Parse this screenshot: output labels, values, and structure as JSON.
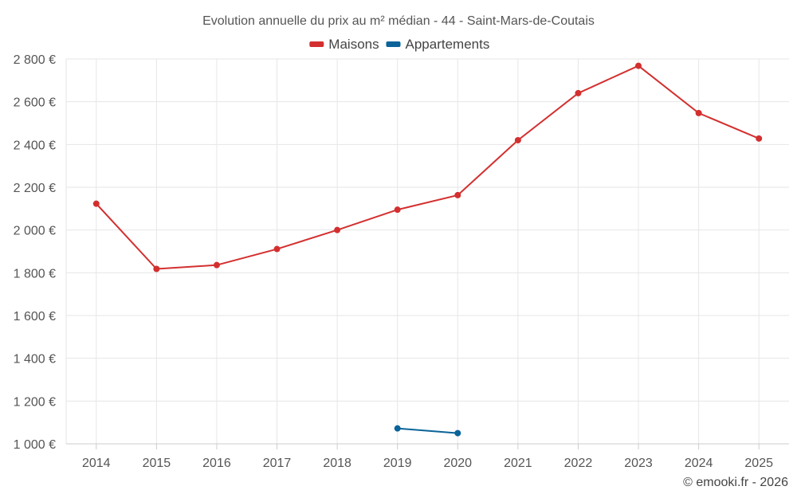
{
  "chart_data": {
    "type": "line",
    "title": "Evolution annuelle du prix au m² médian - 44 - Saint-Mars-de-Coutais",
    "x": [
      "2014",
      "2015",
      "2016",
      "2017",
      "2018",
      "2019",
      "2020",
      "2021",
      "2022",
      "2023",
      "2024",
      "2025"
    ],
    "ylim": [
      1000,
      2800
    ],
    "yticks": [
      1000,
      1200,
      1400,
      1600,
      1800,
      2000,
      2200,
      2400,
      2600,
      2800
    ],
    "ytick_labels": [
      "1 000 €",
      "1 200 €",
      "1 400 €",
      "1 600 €",
      "1 800 €",
      "2 000 €",
      "2 200 €",
      "2 400 €",
      "2 600 €",
      "2 800 €"
    ],
    "grid": true,
    "legend_position": "top-center",
    "series": [
      {
        "name": "Maisons",
        "color": "#d32f2f",
        "values": [
          2123,
          1818,
          1836,
          1911,
          2000,
          2095,
          2163,
          2420,
          2640,
          2768,
          2547,
          2428
        ]
      },
      {
        "name": "Appartements",
        "color": "#0a6399",
        "values": [
          null,
          null,
          null,
          null,
          null,
          1072,
          1050,
          null,
          null,
          null,
          null,
          null
        ]
      }
    ]
  },
  "footer": "© emooki.fr - 2026"
}
